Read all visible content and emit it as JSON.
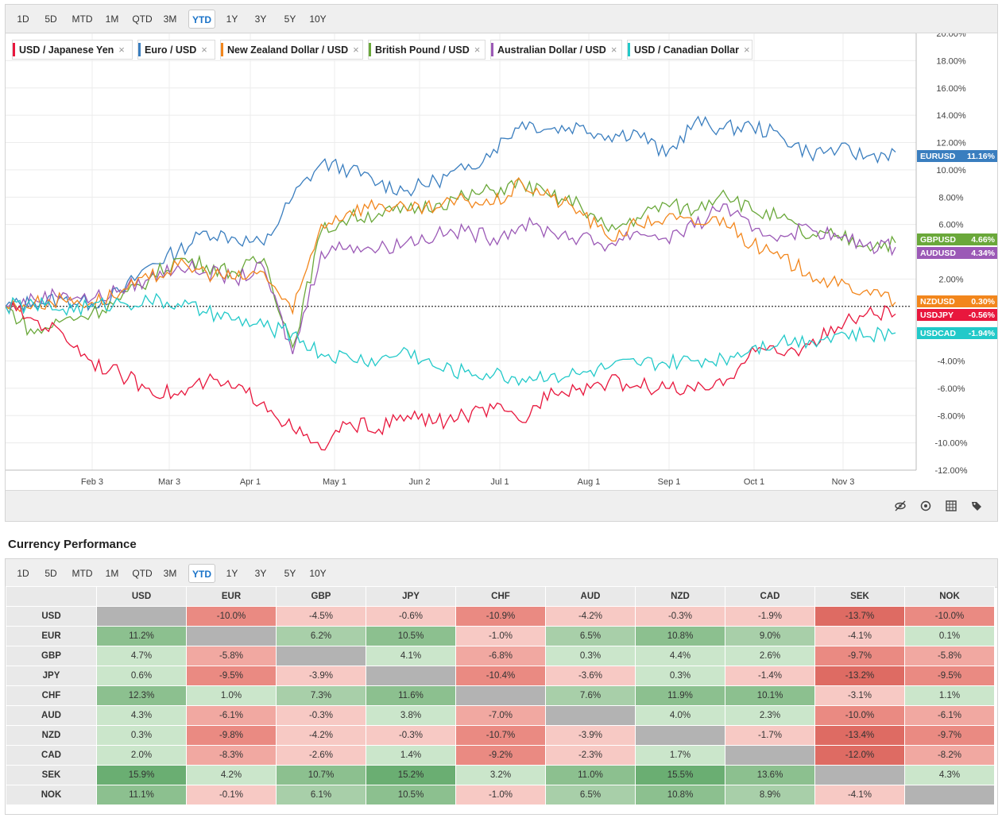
{
  "periods": [
    "1D",
    "5D",
    "MTD",
    "1M",
    "QTD",
    "3M",
    "YTD",
    "1Y",
    "3Y",
    "5Y",
    "10Y"
  ],
  "active_period": "YTD",
  "legend": [
    {
      "label": "USD / Japanese Yen",
      "color": "#e8173d"
    },
    {
      "label": "Euro / USD",
      "color": "#3a7ebf"
    },
    {
      "label": "New Zealand Dollar / USD",
      "color": "#f2861c"
    },
    {
      "label": "British Pound / USD",
      "color": "#6aa83a"
    },
    {
      "label": "Australian Dollar / USD",
      "color": "#9b59b6"
    },
    {
      "label": "USD / Canadian Dollar",
      "color": "#22c9c9"
    }
  ],
  "legend_close": "×",
  "chart_data": {
    "type": "line",
    "x_ticks": [
      "Feb 3",
      "Mar 3",
      "Apr 1",
      "May 1",
      "Jun 2",
      "Jul 1",
      "Aug 1",
      "Sep 1",
      "Oct 1",
      "Nov 3"
    ],
    "y_ticks": [
      "20.00%",
      "18.00%",
      "16.00%",
      "14.00%",
      "12.00%",
      "10.00%",
      "8.00%",
      "6.00%",
      "2.00%",
      "-4.00%",
      "-6.00%",
      "-8.00%",
      "-10.00%",
      "-12.00%"
    ],
    "ylim": [
      -12,
      20
    ],
    "ylabel": "",
    "grid": true,
    "baseline": 0,
    "series": [
      {
        "name": "EURUSD",
        "value_label": "11.16%",
        "color": "#3a7ebf",
        "final": 11.16,
        "points": [
          [
            0,
            0
          ],
          [
            0.5,
            0.3
          ],
          [
            1,
            0.5
          ],
          [
            1.5,
            0.2
          ],
          [
            2,
            1
          ],
          [
            2.5,
            3
          ],
          [
            3,
            4
          ],
          [
            3.5,
            5.5
          ],
          [
            4,
            5
          ],
          [
            4.5,
            4.5
          ],
          [
            5,
            8
          ],
          [
            5.5,
            10.5
          ],
          [
            6,
            10
          ],
          [
            6.5,
            9
          ],
          [
            7,
            8.5
          ],
          [
            7.5,
            9.2
          ],
          [
            8,
            10
          ],
          [
            8.5,
            11.5
          ],
          [
            9,
            13.5
          ],
          [
            9.5,
            13
          ],
          [
            10,
            13.2
          ],
          [
            10.5,
            12.5
          ],
          [
            11,
            12.8
          ],
          [
            11.5,
            11
          ],
          [
            12,
            13.5
          ],
          [
            12.5,
            13
          ],
          [
            13,
            13.2
          ],
          [
            13.5,
            12.5
          ],
          [
            14,
            11.2
          ],
          [
            14.5,
            11.5
          ],
          [
            15,
            11
          ],
          [
            15.5,
            11.3
          ]
        ]
      },
      {
        "name": "GBPUSD",
        "value_label": "4.66%",
        "color": "#6aa83a",
        "final": 4.66,
        "points": [
          [
            0,
            0
          ],
          [
            0.5,
            -2
          ],
          [
            1,
            -1
          ],
          [
            1.5,
            -0.5
          ],
          [
            2,
            0.5
          ],
          [
            2.5,
            2
          ],
          [
            3,
            3.5
          ],
          [
            3.5,
            3
          ],
          [
            4,
            2.5
          ],
          [
            4.5,
            3.5
          ],
          [
            5,
            -3
          ],
          [
            5.5,
            5.5
          ],
          [
            6,
            6.5
          ],
          [
            6.5,
            6.8
          ],
          [
            7,
            7
          ],
          [
            7.5,
            7.5
          ],
          [
            8,
            8
          ],
          [
            8.5,
            8.5
          ],
          [
            9,
            9
          ],
          [
            9.5,
            8
          ],
          [
            10,
            7.5
          ],
          [
            10.5,
            5.5
          ],
          [
            11,
            6.5
          ],
          [
            11.5,
            7.5
          ],
          [
            12,
            7
          ],
          [
            12.5,
            8.5
          ],
          [
            13,
            7
          ],
          [
            13.5,
            6.5
          ],
          [
            14,
            5
          ],
          [
            14.5,
            5.2
          ],
          [
            15,
            4.5
          ],
          [
            15.5,
            4.66
          ]
        ]
      },
      {
        "name": "AUDUSD",
        "value_label": "4.34%",
        "color": "#9b59b6",
        "final": 4.34,
        "points": [
          [
            0,
            0
          ],
          [
            0.5,
            0.5
          ],
          [
            1,
            1
          ],
          [
            1.5,
            0.5
          ],
          [
            2,
            1.2
          ],
          [
            2.5,
            2
          ],
          [
            3,
            3
          ],
          [
            3.5,
            2.5
          ],
          [
            4,
            2
          ],
          [
            4.5,
            2.8
          ],
          [
            5,
            -3.5
          ],
          [
            5.5,
            4
          ],
          [
            6,
            4.5
          ],
          [
            6.5,
            4.2
          ],
          [
            7,
            4.8
          ],
          [
            7.5,
            5.2
          ],
          [
            8,
            5.5
          ],
          [
            8.5,
            5
          ],
          [
            9,
            6
          ],
          [
            9.5,
            5.5
          ],
          [
            10,
            5
          ],
          [
            10.5,
            4.5
          ],
          [
            11,
            5.5
          ],
          [
            11.5,
            5
          ],
          [
            12,
            5.8
          ],
          [
            12.5,
            7.5
          ],
          [
            13,
            5.5
          ],
          [
            13.5,
            5.2
          ],
          [
            14,
            5.8
          ],
          [
            14.5,
            5
          ],
          [
            15,
            4.5
          ],
          [
            15.5,
            4.34
          ]
        ]
      },
      {
        "name": "NZDUSD",
        "value_label": "0.30%",
        "color": "#f2861c",
        "final": 0.3,
        "points": [
          [
            0,
            0
          ],
          [
            0.5,
            0.2
          ],
          [
            1,
            0.5
          ],
          [
            1.5,
            0.3
          ],
          [
            2,
            1
          ],
          [
            2.5,
            2
          ],
          [
            3,
            3
          ],
          [
            3.5,
            2.5
          ],
          [
            4,
            2
          ],
          [
            4.5,
            2.5
          ],
          [
            5,
            -0.5
          ],
          [
            5.5,
            6
          ],
          [
            6,
            7
          ],
          [
            6.5,
            7.5
          ],
          [
            7,
            7
          ],
          [
            7.5,
            7.2
          ],
          [
            8,
            7.8
          ],
          [
            8.5,
            7.5
          ],
          [
            9,
            9
          ],
          [
            9.5,
            8
          ],
          [
            10,
            7
          ],
          [
            10.5,
            5
          ],
          [
            11,
            6
          ],
          [
            11.5,
            6.5
          ],
          [
            12,
            6
          ],
          [
            12.5,
            6.5
          ],
          [
            13,
            4.5
          ],
          [
            13.5,
            3.5
          ],
          [
            14,
            2.5
          ],
          [
            14.5,
            1.5
          ],
          [
            15,
            1.2
          ],
          [
            15.5,
            0.3
          ]
        ]
      },
      {
        "name": "USDJPY",
        "value_label": "-0.56%",
        "color": "#e8173d",
        "final": -0.56,
        "points": [
          [
            0,
            0
          ],
          [
            0.5,
            -1
          ],
          [
            1,
            -2
          ],
          [
            1.5,
            -4
          ],
          [
            2,
            -5
          ],
          [
            2.5,
            -6
          ],
          [
            3,
            -6.5
          ],
          [
            3.5,
            -5.5
          ],
          [
            4,
            -6
          ],
          [
            4.5,
            -7
          ],
          [
            5,
            -9
          ],
          [
            5.5,
            -10.5
          ],
          [
            6,
            -8.5
          ],
          [
            6.5,
            -9
          ],
          [
            7,
            -8
          ],
          [
            7.5,
            -8.5
          ],
          [
            8,
            -8
          ],
          [
            8.5,
            -7.5
          ],
          [
            9,
            -8.5
          ],
          [
            9.5,
            -6
          ],
          [
            10,
            -6
          ],
          [
            10.5,
            -5.5
          ],
          [
            11,
            -5.8
          ],
          [
            11.5,
            -6
          ],
          [
            12,
            -6.2
          ],
          [
            12.5,
            -5.8
          ],
          [
            13,
            -3
          ],
          [
            13.5,
            -3.5
          ],
          [
            14,
            -2.8
          ],
          [
            14.5,
            -1.5
          ],
          [
            15,
            -0.5
          ],
          [
            15.5,
            -0.56
          ]
        ]
      },
      {
        "name": "USDCAD",
        "value_label": "-1.94%",
        "color": "#22c9c9",
        "final": -1.94,
        "points": [
          [
            0,
            0
          ],
          [
            0.5,
            0.1
          ],
          [
            1,
            -0.2
          ],
          [
            1.5,
            0
          ],
          [
            2,
            0.3
          ],
          [
            2.5,
            0.4
          ],
          [
            3,
            0.2
          ],
          [
            3.5,
            -0.5
          ],
          [
            4,
            -1
          ],
          [
            4.5,
            -1.5
          ],
          [
            5,
            -2
          ],
          [
            5.5,
            -3.5
          ],
          [
            6,
            -3.8
          ],
          [
            6.5,
            -4
          ],
          [
            7,
            -3.2
          ],
          [
            7.5,
            -4.5
          ],
          [
            8,
            -4.8
          ],
          [
            8.5,
            -5
          ],
          [
            9,
            -5.3
          ],
          [
            9.5,
            -5
          ],
          [
            10,
            -5
          ],
          [
            10.5,
            -4.5
          ],
          [
            11,
            -4.2
          ],
          [
            11.5,
            -4.2
          ],
          [
            12,
            -4
          ],
          [
            12.5,
            -3.8
          ],
          [
            13,
            -3
          ],
          [
            13.5,
            -2.5
          ],
          [
            14,
            -2.5
          ],
          [
            14.5,
            -2
          ],
          [
            15,
            -2.2
          ],
          [
            15.5,
            -1.94
          ]
        ]
      }
    ]
  },
  "toolbar_icons": [
    "hide-icon",
    "reset-icon",
    "grid-icon",
    "tag-icon"
  ],
  "performance": {
    "title": "Currency Performance",
    "columns": [
      "USD",
      "EUR",
      "GBP",
      "JPY",
      "CHF",
      "AUD",
      "NZD",
      "CAD",
      "SEK",
      "NOK"
    ],
    "rows": [
      {
        "label": "USD",
        "values": [
          "",
          "-10.0%",
          "-4.5%",
          "-0.6%",
          "-10.9%",
          "-4.2%",
          "-0.3%",
          "-1.9%",
          "-13.7%",
          "-10.0%"
        ]
      },
      {
        "label": "EUR",
        "values": [
          "11.2%",
          "",
          "6.2%",
          "10.5%",
          "-1.0%",
          "6.5%",
          "10.8%",
          "9.0%",
          "-4.1%",
          "0.1%"
        ]
      },
      {
        "label": "GBP",
        "values": [
          "4.7%",
          "-5.8%",
          "",
          "4.1%",
          "-6.8%",
          "0.3%",
          "4.4%",
          "2.6%",
          "-9.7%",
          "-5.8%"
        ]
      },
      {
        "label": "JPY",
        "values": [
          "0.6%",
          "-9.5%",
          "-3.9%",
          "",
          "-10.4%",
          "-3.6%",
          "0.3%",
          "-1.4%",
          "-13.2%",
          "-9.5%"
        ]
      },
      {
        "label": "CHF",
        "values": [
          "12.3%",
          "1.0%",
          "7.3%",
          "11.6%",
          "",
          "7.6%",
          "11.9%",
          "10.1%",
          "-3.1%",
          "1.1%"
        ]
      },
      {
        "label": "AUD",
        "values": [
          "4.3%",
          "-6.1%",
          "-0.3%",
          "3.8%",
          "-7.0%",
          "",
          "4.0%",
          "2.3%",
          "-10.0%",
          "-6.1%"
        ]
      },
      {
        "label": "NZD",
        "values": [
          "0.3%",
          "-9.8%",
          "-4.2%",
          "-0.3%",
          "-10.7%",
          "-3.9%",
          "",
          "-1.7%",
          "-13.4%",
          "-9.7%"
        ]
      },
      {
        "label": "CAD",
        "values": [
          "2.0%",
          "-8.3%",
          "-2.6%",
          "1.4%",
          "-9.2%",
          "-2.3%",
          "1.7%",
          "",
          "-12.0%",
          "-8.2%"
        ]
      },
      {
        "label": "SEK",
        "values": [
          "15.9%",
          "4.2%",
          "10.7%",
          "15.2%",
          "3.2%",
          "11.0%",
          "15.5%",
          "13.6%",
          "",
          "4.3%"
        ]
      },
      {
        "label": "NOK",
        "values": [
          "11.1%",
          "-0.1%",
          "6.1%",
          "10.5%",
          "-1.0%",
          "6.5%",
          "10.8%",
          "8.9%",
          "-4.1%",
          ""
        ]
      }
    ]
  }
}
